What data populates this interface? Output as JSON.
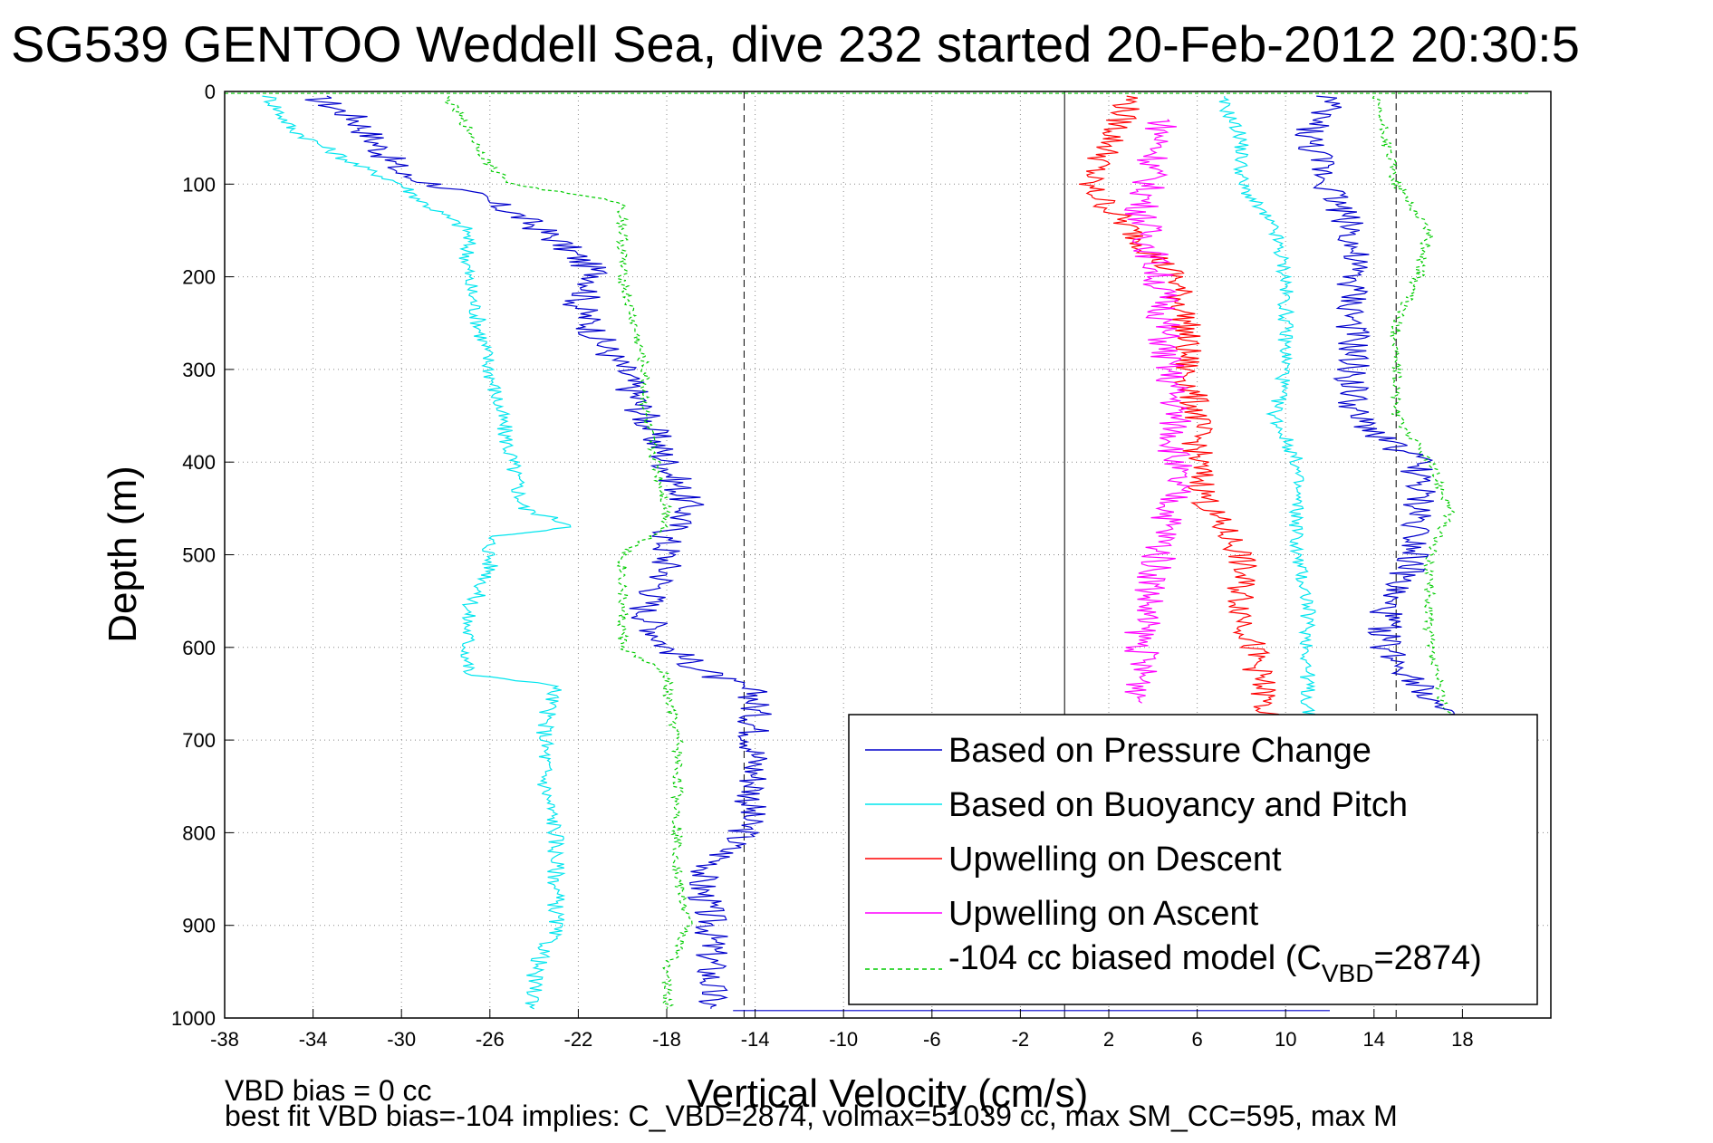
{
  "chart_data": {
    "type": "line",
    "title": "SG539 GENTOO Weddell Sea, dive 232 started 20-Feb-2012 20:30:5",
    "xlabel": "Vertical Velocity (cm/s)",
    "ylabel": "Depth (m)",
    "xlim": [
      -38,
      22
    ],
    "ylim": [
      1000,
      0
    ],
    "y_reversed": true,
    "grid": true,
    "x_ticks": [
      -38,
      -34,
      -30,
      -26,
      -22,
      -18,
      -14,
      -10,
      -6,
      -2,
      2,
      6,
      10,
      14,
      18
    ],
    "y_ticks": [
      0,
      100,
      200,
      300,
      400,
      500,
      600,
      700,
      800,
      900,
      1000
    ],
    "reference_lines": [
      {
        "x": -14.5,
        "style": "dashed"
      },
      {
        "x": 0,
        "style": "solid"
      },
      {
        "x": 15,
        "style": "dashed"
      }
    ],
    "legend_position": "bottom-right",
    "series": [
      {
        "name": "Based on Pressure Change",
        "color": "#0000cc",
        "style": "solid",
        "depth": [
          5,
          30,
          60,
          90,
          110,
          130,
          160,
          200,
          230,
          270,
          300,
          350,
          400,
          450,
          480,
          520,
          560,
          600,
          630,
          650,
          700,
          750,
          800,
          850,
          900,
          950,
          990
        ],
        "velocity": [
          -34,
          -32,
          -31,
          -30,
          -27,
          -25,
          -23,
          -21,
          -22,
          -21,
          -20,
          -19,
          -18,
          -17,
          -18,
          -18,
          -19,
          -18,
          -16,
          -14,
          -14,
          -14,
          -14.5,
          -16.5,
          -16,
          -16,
          -16
        ]
      },
      {
        "name": "Based on Buoyancy and Pitch",
        "color": "#00e5ee",
        "style": "solid",
        "depth": [
          5,
          40,
          80,
          100,
          120,
          150,
          200,
          250,
          300,
          350,
          400,
          450,
          470,
          480,
          520,
          560,
          600,
          630,
          640,
          680,
          750,
          800,
          850,
          900,
          950,
          990
        ],
        "velocity": [
          -36,
          -35,
          -32,
          -30,
          -29,
          -27,
          -27,
          -26.5,
          -26,
          -25.5,
          -25,
          -24.5,
          -22,
          -26,
          -26,
          -27,
          -27,
          -27,
          -23,
          -23.5,
          -23.5,
          -23,
          -23,
          -23,
          -24,
          -24
        ]
      },
      {
        "name": "Upwelling on Descent",
        "color": "#ff0000",
        "style": "solid",
        "depth": [
          5,
          60,
          100,
          150,
          200,
          250,
          300,
          350,
          400,
          450,
          500,
          550,
          600,
          650,
          680
        ],
        "velocity": [
          3,
          2,
          1,
          3,
          5,
          5.5,
          5.5,
          6,
          6,
          6.5,
          8,
          8,
          8.5,
          9,
          9
        ]
      },
      {
        "name": "Upwelling on Ascent",
        "color": "#ff00ff",
        "style": "solid",
        "depth": [
          30,
          80,
          130,
          180,
          230,
          280,
          330,
          380,
          430,
          480,
          530,
          580,
          630,
          660
        ],
        "velocity": [
          4.5,
          4,
          3.5,
          4,
          4.5,
          4.5,
          5,
          5,
          5,
          4.5,
          4,
          3.5,
          3.5,
          3.5
        ]
      },
      {
        "name": "-104 cc biased model (C_VBD=2874)",
        "color": "#00cc00",
        "style": "dashed",
        "depth": [
          5,
          40,
          80,
          100,
          120,
          150,
          200,
          250,
          300,
          350,
          400,
          450,
          470,
          500,
          550,
          600,
          630,
          650,
          700,
          750,
          800,
          850,
          900,
          950,
          990
        ],
        "velocity": [
          -28,
          -27,
          -26,
          -25,
          -20,
          -20,
          -20,
          -19.5,
          -19,
          -19,
          -18.5,
          -18,
          -18,
          -20,
          -20,
          -20,
          -18,
          -18,
          -17.5,
          -17.5,
          -17.5,
          -17.5,
          -17,
          -18,
          -18
        ]
      }
    ],
    "right_cluster": {
      "pressure_right": {
        "depth": [
          5,
          50,
          100,
          150,
          200,
          250,
          300,
          350,
          400,
          450,
          500,
          550,
          600,
          650,
          680
        ],
        "velocity": [
          12,
          11,
          12,
          13,
          13,
          13,
          13,
          13,
          16,
          16,
          16,
          14.5,
          14.5,
          16.5,
          17
        ]
      },
      "buoyancy_right": {
        "depth": [
          5,
          50,
          100,
          150,
          200,
          250,
          300,
          350,
          400,
          450,
          500,
          550,
          600,
          650,
          680
        ],
        "velocity": [
          7,
          8,
          8,
          9.5,
          10,
          10,
          10,
          9.5,
          10.5,
          10.5,
          10.5,
          11,
          11,
          11,
          11
        ]
      },
      "model_right": {
        "depth": [
          5,
          50,
          100,
          150,
          200,
          250,
          300,
          350,
          400,
          450,
          500,
          550,
          600,
          650,
          680
        ],
        "velocity": [
          14,
          14.5,
          15,
          16.5,
          16,
          15,
          15,
          15,
          16.5,
          17.5,
          16.5,
          16.5,
          16.5,
          17,
          17.5
        ]
      }
    }
  },
  "legend": {
    "entries": [
      {
        "label": "Based on Pressure Change",
        "color": "#0000cc",
        "dash": "none"
      },
      {
        "label": "Based on Buoyancy and Pitch",
        "color": "#00e5ee",
        "dash": "none"
      },
      {
        "label": "Upwelling on Descent",
        "color": "#ff0000",
        "dash": "none"
      },
      {
        "label": "Upwelling on Ascent",
        "color": "#ff00ff",
        "dash": "none"
      }
    ],
    "model_prefix": "-104 cc biased model (C",
    "model_sub": "VBD",
    "model_suffix": "=2874)",
    "model_color": "#00cc00"
  },
  "footer": {
    "line1": "VBD bias = 0 cc",
    "line2": "best fit VBD bias=-104 implies: C_VBD=2874, volmax=51039 cc, max SM_CC=595, max M"
  }
}
